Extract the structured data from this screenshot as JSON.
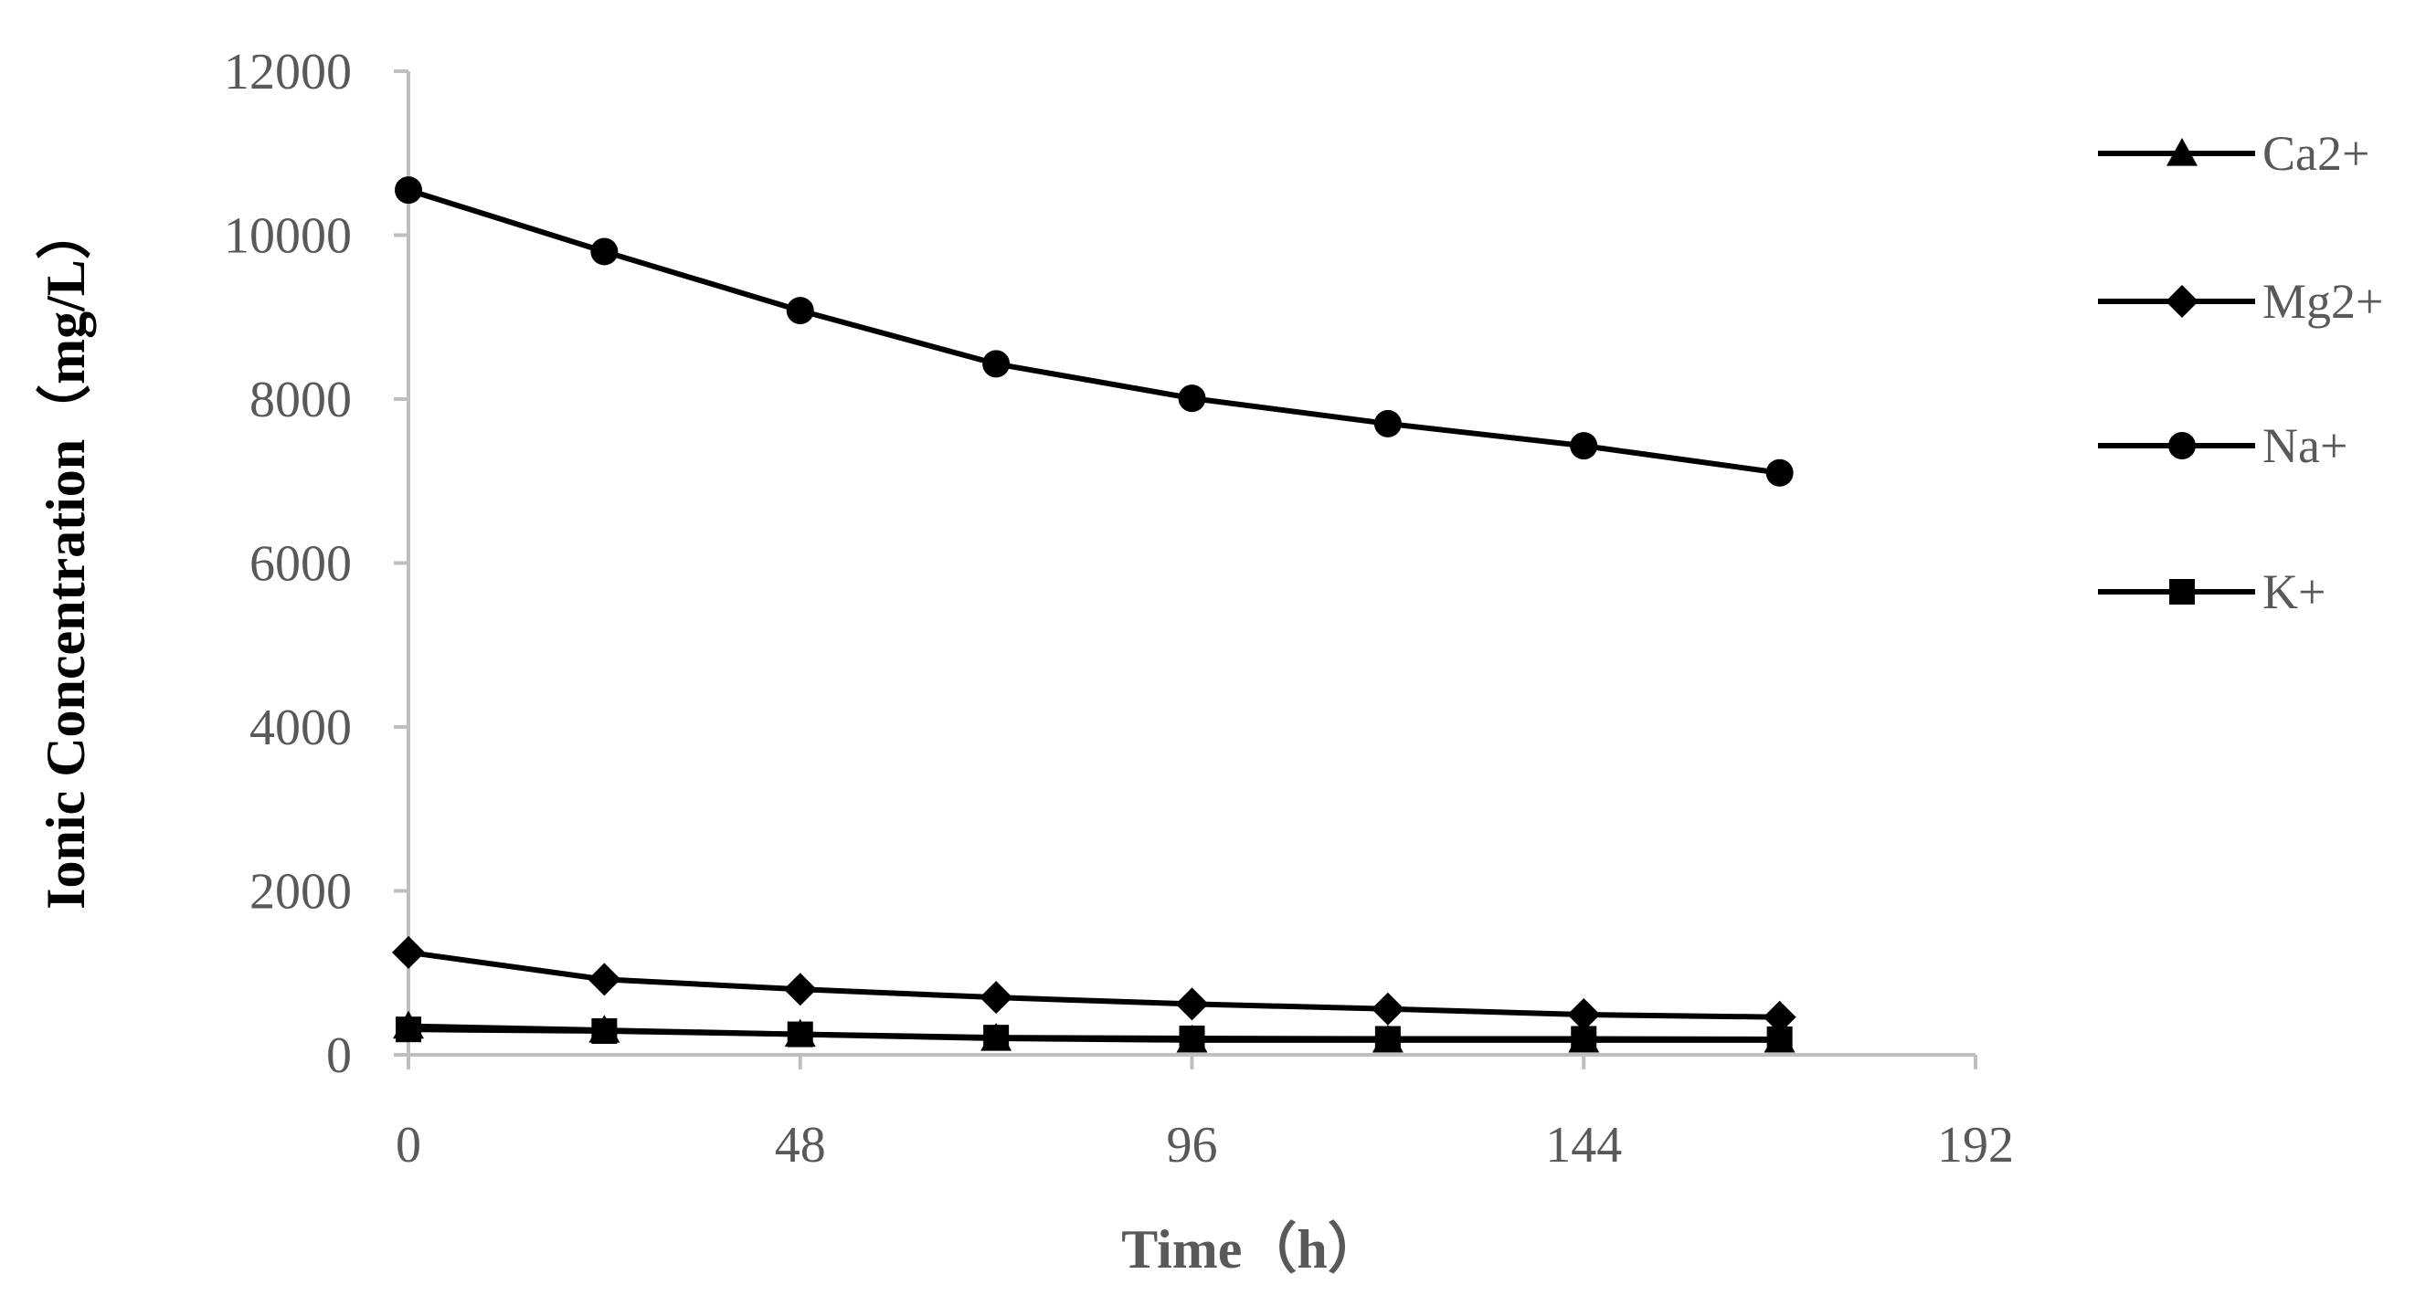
{
  "chart_data": {
    "type": "line",
    "title": "",
    "xlabel": "Time（h）",
    "ylabel": "Ionic Concentration（mg/L）",
    "x": [
      0,
      24,
      48,
      72,
      96,
      120,
      144,
      168
    ],
    "xlim": [
      0,
      192
    ],
    "ylim": [
      0,
      12000
    ],
    "xticks": [
      "0",
      "48",
      "96",
      "144",
      "192"
    ],
    "yticks": [
      "0",
      "2000",
      "4000",
      "6000",
      "8000",
      "10000",
      "12000"
    ],
    "grid": false,
    "legend_position": "right",
    "series": [
      {
        "name": "Ca2+",
        "marker": "triangle",
        "color": "#000000",
        "values": [
          350,
          300,
          250,
          200,
          180,
          180,
          180,
          180
        ]
      },
      {
        "name": "Mg2+",
        "marker": "diamond",
        "color": "#000000",
        "values": [
          1250,
          920,
          800,
          700,
          620,
          560,
          490,
          460
        ]
      },
      {
        "name": "Na+",
        "marker": "circle",
        "color": "#000000",
        "values": [
          10550,
          9800,
          9080,
          8430,
          8010,
          7700,
          7430,
          7100
        ]
      },
      {
        "name": "K+",
        "marker": "square",
        "color": "#000000",
        "values": [
          310,
          290,
          250,
          210,
          200,
          195,
          195,
          190
        ]
      }
    ],
    "axis_color": "#BFBFBF",
    "tick_color": "#595959"
  }
}
